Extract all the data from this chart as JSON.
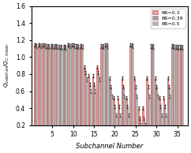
{
  "xlabel": "Subchannel Number",
  "ylabel": "$Q_{subchan}/Q_{c:mean}$",
  "xlim": [
    0.0,
    37.5
  ],
  "ylim": [
    0.2,
    1.6
  ],
  "yticks": [
    0.2,
    0.4,
    0.6,
    0.8,
    1.0,
    1.2,
    1.4,
    1.6
  ],
  "xticks": [
    5,
    10,
    15,
    20,
    25,
    30,
    35
  ],
  "legend_labels": [
    "BR=0.3",
    "BR=0.39",
    "BR=0.5"
  ],
  "bar_fill_colors": [
    "#d9a8a8",
    "#b09898",
    "#c0b0b0"
  ],
  "bar_edge_colors": [
    "#cc3333",
    "#888888",
    "#aaaaaa"
  ],
  "BR03": [
    1.14,
    1.14,
    1.14,
    1.13,
    1.13,
    1.13,
    1.12,
    1.12,
    1.14,
    1.14,
    1.13,
    1.13,
    0.88,
    0.78,
    0.78,
    0.88,
    1.13,
    1.14,
    0.75,
    0.52,
    0.52,
    0.75,
    0.52,
    1.14,
    0.75,
    0.4,
    0.4,
    0.75,
    1.13,
    0.75,
    0.52,
    0.52,
    0.75,
    1.13,
    1.12,
    1.12
  ],
  "BR039": [
    1.14,
    1.14,
    1.14,
    1.13,
    1.13,
    1.13,
    1.12,
    1.12,
    1.14,
    1.14,
    1.13,
    1.13,
    0.82,
    0.68,
    0.68,
    0.82,
    1.13,
    1.14,
    0.65,
    0.42,
    0.42,
    0.65,
    0.42,
    1.14,
    0.65,
    0.28,
    0.28,
    0.65,
    1.13,
    0.65,
    0.42,
    0.42,
    0.65,
    1.13,
    1.12,
    1.12
  ],
  "BR05": [
    1.13,
    1.13,
    1.13,
    1.12,
    1.12,
    1.12,
    1.11,
    1.11,
    1.13,
    1.13,
    1.12,
    1.12,
    0.74,
    0.6,
    0.6,
    0.74,
    1.12,
    1.13,
    0.54,
    0.32,
    0.32,
    0.54,
    0.32,
    1.13,
    0.54,
    0.2,
    0.2,
    0.54,
    1.12,
    0.54,
    0.32,
    0.32,
    0.54,
    1.12,
    1.11,
    1.11
  ],
  "n_subchannels": 36,
  "figsize": [
    2.42,
    1.94
  ],
  "dpi": 100
}
